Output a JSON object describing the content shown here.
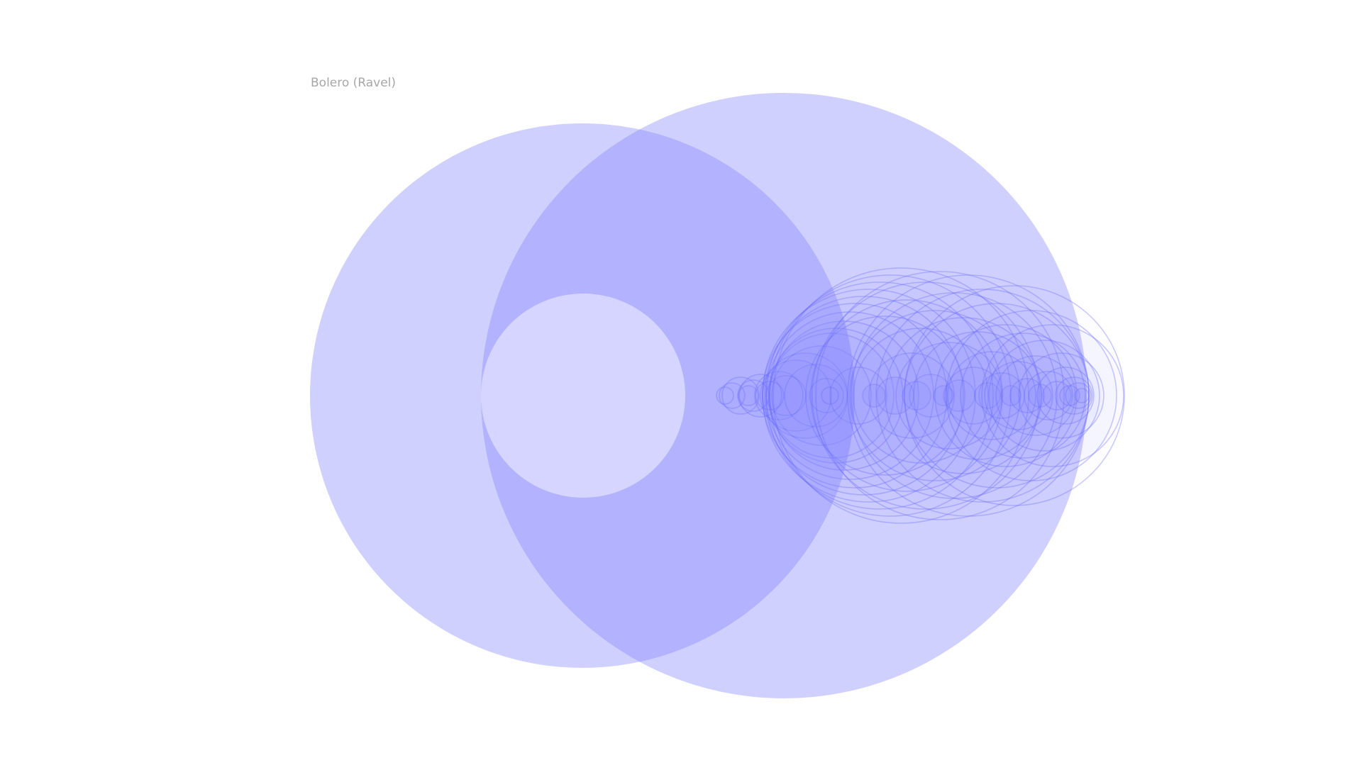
{
  "title": "Bolero (Ravel)",
  "colors": {
    "fill": "#8080ff",
    "stroke": "#6a6aff",
    "title": "#a7a7a7"
  }
}
